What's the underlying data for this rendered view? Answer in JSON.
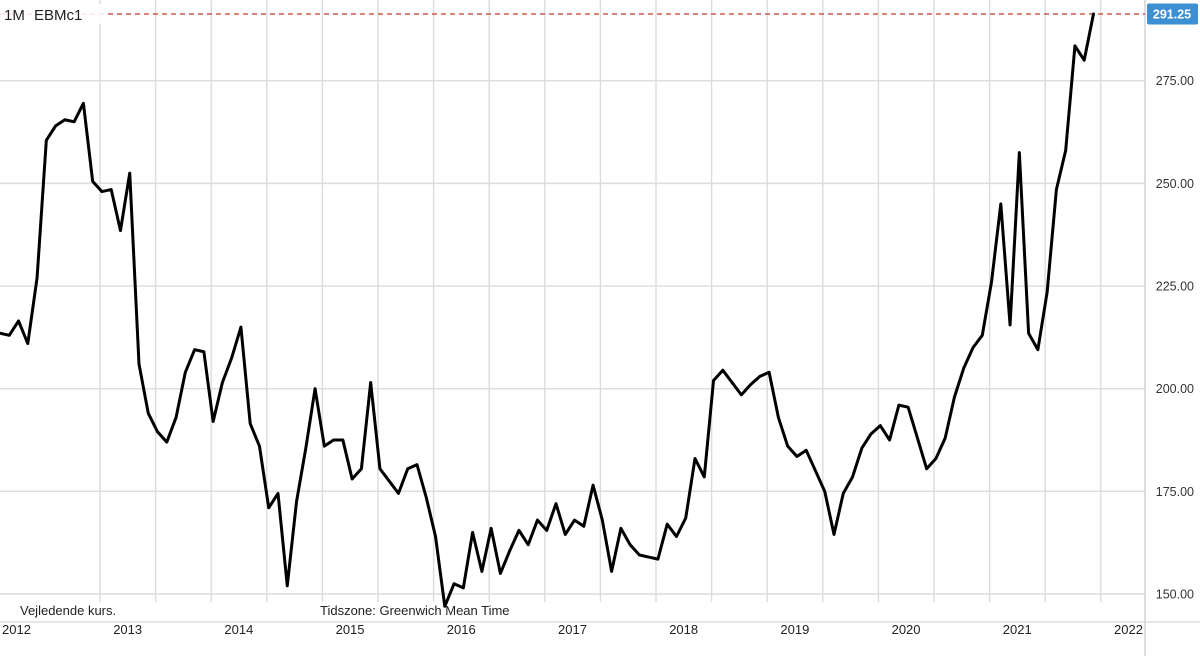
{
  "header": {
    "period": "1M",
    "symbol": "EBMc1"
  },
  "footer": {
    "note": "Vejledende kurs.",
    "timezone": "Tidszone: Greenwich Mean Time"
  },
  "last_price": {
    "value": 291.25,
    "label": "291.25",
    "color": "#3d8fd4",
    "line_color": "#c0392b"
  },
  "chart_data": {
    "type": "line",
    "ylim": [
      147,
      294
    ],
    "y_ticks": [
      "150.00",
      "175.00",
      "200.00",
      "225.00",
      "250.00",
      "275.00"
    ],
    "x_tick_labels": [
      "2012",
      "2013",
      "2014",
      "2015",
      "2016",
      "2017",
      "2018",
      "2019",
      "2020",
      "2021",
      "2022"
    ],
    "grid": true,
    "series": [
      {
        "values": [
          213.5,
          213.0,
          216.5,
          211.0,
          227.0,
          260.5,
          264.0,
          265.5,
          265.0,
          269.5,
          250.5,
          248.0,
          248.5,
          238.5,
          252.5,
          206.0,
          194.0,
          189.5,
          187.0,
          193.0,
          204.0,
          209.5,
          209.0,
          192.0,
          201.5,
          207.5,
          215.0,
          191.5,
          186.0,
          171.0,
          174.5,
          152.0,
          172.5,
          185.5,
          200.0,
          186.0,
          187.5,
          187.5,
          178.0,
          180.5,
          201.5,
          180.5,
          177.5,
          174.5,
          180.5,
          181.5,
          173.5,
          164.0,
          147.0,
          152.5,
          151.5,
          165.0,
          155.5,
          166.0,
          155.0,
          160.5,
          165.5,
          162.0,
          168.0,
          165.5,
          172.0,
          164.5,
          168.0,
          166.5,
          176.5,
          168.0,
          155.5,
          166.0,
          162.0,
          159.5,
          159.0,
          158.5,
          167.0,
          164.0,
          168.5,
          183.0,
          178.5,
          202.0,
          204.5,
          201.5,
          198.5,
          201.0,
          203.0,
          204.0,
          193.0,
          186.0,
          183.5,
          185.0,
          180.0,
          175.0,
          164.5,
          174.5,
          178.5,
          185.5,
          189.0,
          191.0,
          187.5,
          196.0,
          195.5,
          188.0,
          180.5,
          183.0,
          188.0,
          198.0,
          205.0,
          210.0,
          213.0,
          226.0,
          245.0,
          215.5,
          257.5,
          213.5,
          209.5,
          223.5,
          248.5,
          258.0,
          283.5,
          280.0,
          291.25
        ]
      }
    ]
  }
}
